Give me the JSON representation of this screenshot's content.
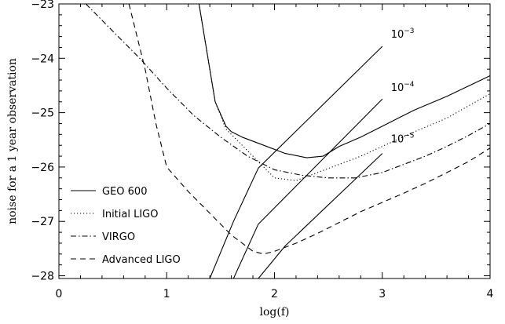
{
  "chart_data": {
    "type": "line",
    "title": "",
    "xlabel": "log(f)",
    "ylabel": "noise for a 1 year observation",
    "xlim": [
      0,
      4
    ],
    "ylim": [
      -28.05,
      -23
    ],
    "xticks": [
      0,
      1,
      2,
      3,
      4
    ],
    "xtick_labels": [
      "0",
      "1",
      "2",
      "3",
      "4"
    ],
    "yticks": [
      -28,
      -27,
      -26,
      -25,
      -24,
      -23
    ],
    "ytick_labels": [
      "−28",
      "−27",
      "−26",
      "−25",
      "−24",
      "−23"
    ],
    "grid": false,
    "legend_position": "bottom-left",
    "series": [
      {
        "name": "GEO 600",
        "style": "solid",
        "x": [
          1.3,
          1.45,
          1.55,
          1.6,
          1.7,
          1.9,
          2.1,
          2.3,
          2.45,
          2.6,
          2.8,
          3.0,
          3.3,
          3.6,
          4.0
        ],
        "y": [
          -23.0,
          -24.8,
          -25.25,
          -25.35,
          -25.45,
          -25.6,
          -25.75,
          -25.83,
          -25.8,
          -25.62,
          -25.45,
          -25.25,
          -24.95,
          -24.7,
          -24.32
        ]
      },
      {
        "name": "Initial LIGO",
        "style": "dotted",
        "x": [
          1.3,
          1.45,
          1.55,
          1.65,
          1.8,
          2.0,
          2.2,
          2.4,
          2.6,
          2.8,
          3.0,
          3.3,
          3.6,
          4.0
        ],
        "y": [
          -23.0,
          -24.8,
          -25.3,
          -25.5,
          -25.8,
          -26.2,
          -26.25,
          -26.1,
          -25.95,
          -25.8,
          -25.62,
          -25.35,
          -25.1,
          -24.65
        ]
      },
      {
        "name": "VIRGO",
        "style": "dashdot",
        "x": [
          0.25,
          0.5,
          0.75,
          1.0,
          1.25,
          1.5,
          1.75,
          2.0,
          2.25,
          2.5,
          2.75,
          3.0,
          3.2,
          3.4,
          3.6,
          3.8,
          4.0
        ],
        "y": [
          -23.0,
          -23.5,
          -24.0,
          -24.55,
          -25.05,
          -25.45,
          -25.8,
          -26.05,
          -26.15,
          -26.2,
          -26.2,
          -26.1,
          -25.95,
          -25.8,
          -25.62,
          -25.42,
          -25.2
        ]
      },
      {
        "name": "Advanced LIGO",
        "style": "dashed",
        "x": [
          0.65,
          0.8,
          0.9,
          1.0,
          1.2,
          1.4,
          1.6,
          1.8,
          1.9,
          2.0,
          2.2,
          2.4,
          2.6,
          2.8,
          3.0,
          3.2,
          3.4,
          3.6,
          3.8,
          4.0
        ],
        "y": [
          -23.0,
          -24.2,
          -25.2,
          -26.0,
          -26.45,
          -26.85,
          -27.25,
          -27.55,
          -27.6,
          -27.55,
          -27.4,
          -27.22,
          -27.02,
          -26.82,
          -26.65,
          -26.48,
          -26.3,
          -26.1,
          -25.9,
          -25.65
        ]
      },
      {
        "style": "solid",
        "x": [
          1.4,
          1.62,
          1.85,
          3.0
        ],
        "y": [
          -28.05,
          -27.0,
          -26.02,
          -23.78
        ]
      },
      {
        "style": "solid",
        "x": [
          1.62,
          1.85,
          3.0
        ],
        "y": [
          -28.05,
          -27.05,
          -24.75
        ]
      },
      {
        "style": "solid",
        "x": [
          1.85,
          2.1,
          3.0
        ],
        "y": [
          -28.05,
          -27.45,
          -25.75
        ]
      }
    ],
    "annotations": [
      {
        "base": "10",
        "exponent": "−3",
        "x": 3.08,
        "y": -23.62
      },
      {
        "base": "10",
        "exponent": "−4",
        "x": 3.08,
        "y": -24.6
      },
      {
        "base": "10",
        "exponent": "−5",
        "x": 3.08,
        "y": -25.55
      }
    ]
  }
}
